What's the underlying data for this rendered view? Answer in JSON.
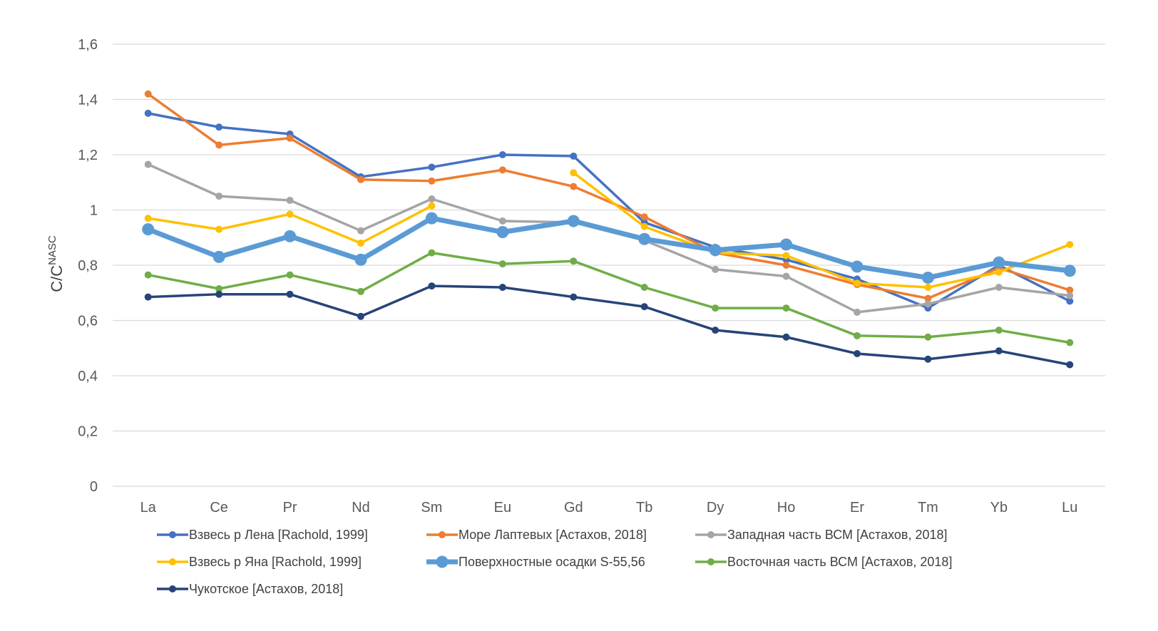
{
  "chart_data": {
    "type": "line",
    "title": "",
    "xlabel": "",
    "ylabel": "C/C",
    "ylabel_sup": "NASC",
    "ylim": [
      0,
      1.6
    ],
    "ytick_values": [
      0,
      0.2,
      0.4,
      0.6,
      0.8,
      1.0,
      1.2,
      1.4,
      1.6
    ],
    "ytick_labels": [
      "0",
      "0,2",
      "0,4",
      "0,6",
      "0,8",
      "1",
      "1,2",
      "1,4",
      "1,6"
    ],
    "grid": "horizontal",
    "legend_position": "bottom",
    "categories": [
      "La",
      "Ce",
      "Pr",
      "Nd",
      "Sm",
      "Eu",
      "Gd",
      "Tb",
      "Dy",
      "Ho",
      "Er",
      "Tm",
      "Yb",
      "Lu"
    ],
    "series": [
      {
        "name": "Взвесь р Лена [Rachold, 1999]",
        "color": "#4472C4",
        "thick": false,
        "values": [
          1.35,
          1.3,
          1.275,
          1.12,
          1.155,
          1.2,
          1.195,
          0.955,
          0.865,
          0.82,
          0.75,
          0.645,
          0.8,
          0.67
        ]
      },
      {
        "name": "Море Лаптевых [Астахов, 2018]",
        "color": "#ED7D31",
        "thick": false,
        "values": [
          1.42,
          1.235,
          1.26,
          1.11,
          1.105,
          1.145,
          1.085,
          0.975,
          0.845,
          0.8,
          0.73,
          0.68,
          0.79,
          0.71
        ]
      },
      {
        "name": "Западная часть ВСМ [Астахов, 2018]",
        "color": "#A5A5A5",
        "thick": false,
        "values": [
          1.165,
          1.05,
          1.035,
          0.925,
          1.04,
          0.96,
          0.955,
          0.89,
          0.785,
          0.76,
          0.63,
          0.66,
          0.72,
          0.69
        ]
      },
      {
        "name": "Взвесь р Яна [Rachold, 1999]",
        "color": "#FFC000",
        "thick": false,
        "values": [
          0.97,
          0.93,
          0.985,
          0.88,
          1.015,
          null,
          1.135,
          0.94,
          0.845,
          0.835,
          0.735,
          0.72,
          0.775,
          0.875
        ]
      },
      {
        "name": "Поверхностные осадки S-55,56",
        "color": "#5B9BD5",
        "thick": true,
        "values": [
          0.93,
          0.83,
          0.905,
          0.82,
          0.97,
          0.92,
          0.96,
          0.895,
          0.855,
          0.875,
          0.795,
          0.755,
          0.81,
          0.78
        ]
      },
      {
        "name": "Восточная часть ВСМ [Астахов, 2018]",
        "color": "#70AD47",
        "thick": false,
        "values": [
          0.765,
          0.715,
          0.765,
          0.705,
          0.845,
          0.805,
          0.815,
          0.72,
          0.645,
          0.645,
          0.545,
          0.54,
          0.565,
          0.52
        ]
      },
      {
        "name": "Чукотское [Астахов, 2018]",
        "color": "#264478",
        "thick": false,
        "values": [
          0.685,
          0.695,
          0.695,
          0.615,
          0.725,
          0.72,
          0.685,
          0.65,
          0.565,
          0.54,
          0.48,
          0.46,
          0.49,
          0.44
        ]
      }
    ]
  }
}
